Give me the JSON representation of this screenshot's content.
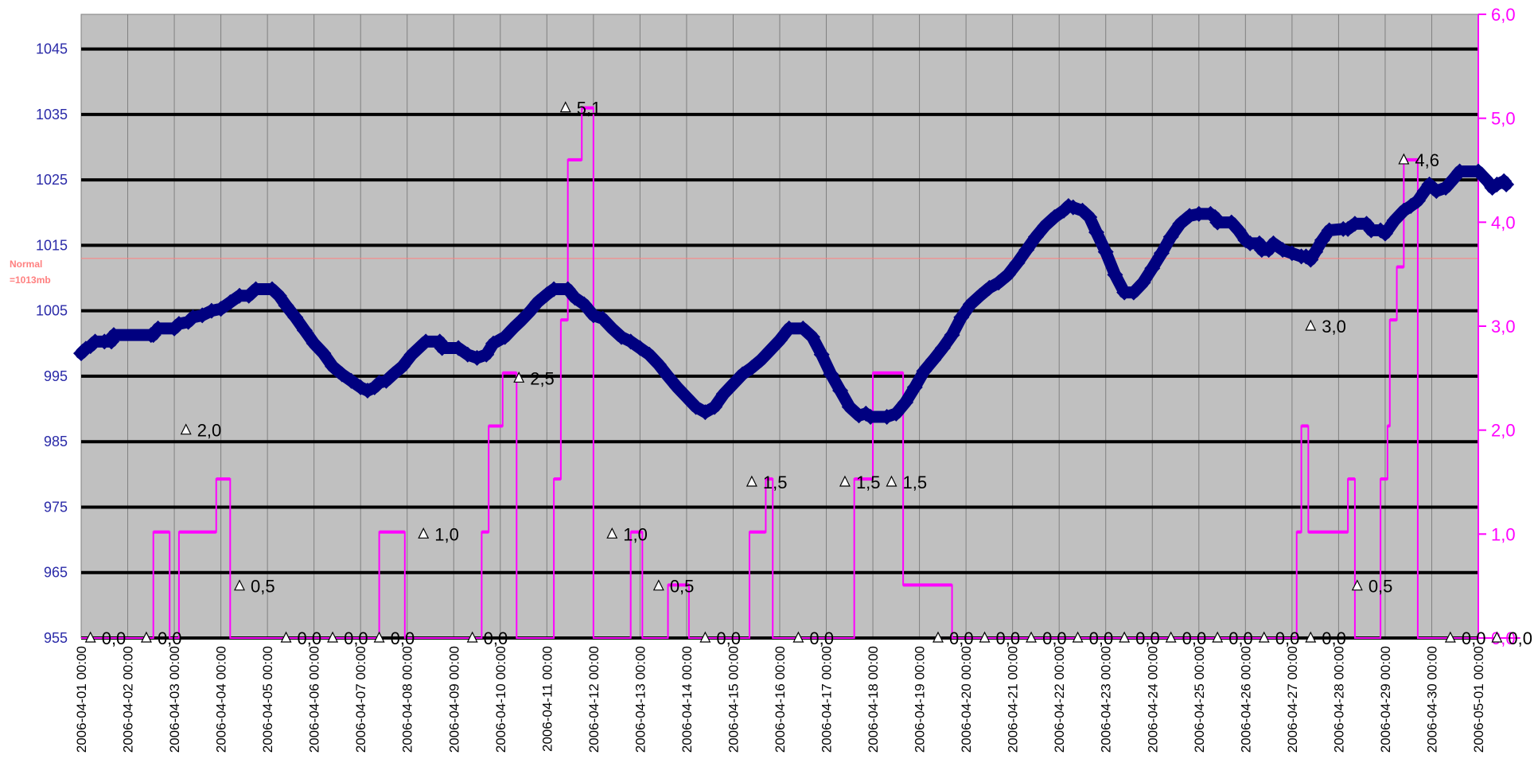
{
  "chart_data": {
    "type": "line",
    "x_labels": [
      "2006-04-01 00:00",
      "2006-04-02 00:00",
      "2006-04-03 00:00",
      "2006-04-04 00:00",
      "2006-04-05 00:00",
      "2006-04-06 00:00",
      "2006-04-07 00:00",
      "2006-04-08 00:00",
      "2006-04-09 00:00",
      "2006-04-10 00:00",
      "2006-04-11 00:00",
      "2006-04-12 00:00",
      "2006-04-13 00:00",
      "2006-04-14 00:00",
      "2006-04-15 00:00",
      "2006-04-16 00:00",
      "2006-04-17 00:00",
      "2006-04-18 00:00",
      "2006-04-19 00:00",
      "2006-04-20 00:00",
      "2006-04-21 00:00",
      "2006-04-22 00:00",
      "2006-04-23 00:00",
      "2006-04-24 00:00",
      "2006-04-25 00:00",
      "2006-04-26 00:00",
      "2006-04-27 00:00",
      "2006-04-28 00:00",
      "2006-04-29 00:00",
      "2006-04-30 00:00",
      "2006-05-01 00:00"
    ],
    "y_left": {
      "ticks": [
        955,
        965,
        975,
        985,
        995,
        1005,
        1015,
        1025,
        1035,
        1045
      ],
      "range": [
        955,
        1050.3
      ]
    },
    "y_right": {
      "ticks": [
        "0,0",
        "1,0",
        "2,0",
        "3,0",
        "4,0",
        "5,0",
        "6,0"
      ],
      "range": [
        0,
        6
      ]
    },
    "grid": "horizontal and vertical",
    "reference_line": {
      "value": 1013,
      "label_line1": "Normal",
      "label_line2": "=1013mb",
      "color": "#ff8080"
    },
    "colors": {
      "plot_background": "#c0c0c0",
      "pressure_line": "#000080",
      "precipitation_line": "#ff00ff",
      "left_axis_text": "#2a2aa8",
      "right_axis_text": "#ff00ff"
    },
    "series": [
      {
        "axis": "left",
        "points": [
          [
            0,
            998.5
          ],
          [
            0.1,
            999.2
          ],
          [
            0.2,
            999.6
          ],
          [
            0.3,
            1000.3
          ],
          [
            0.5,
            1000.3
          ],
          [
            0.65,
            1000.3
          ],
          [
            0.7,
            1001.3
          ],
          [
            1.5,
            1001.3
          ],
          [
            1.55,
            1001.3
          ],
          [
            1.65,
            1002.3
          ],
          [
            2.0,
            1002.3
          ],
          [
            2.1,
            1003.0
          ],
          [
            2.3,
            1003.3
          ],
          [
            2.4,
            1004.0
          ],
          [
            2.6,
            1004.3
          ],
          [
            2.8,
            1005.0
          ],
          [
            3.0,
            1005.3
          ],
          [
            3.2,
            1006.3
          ],
          [
            3.4,
            1007.3
          ],
          [
            3.6,
            1007.3
          ],
          [
            3.75,
            1008.3
          ],
          [
            4.1,
            1008.3
          ],
          [
            4.25,
            1007.3
          ],
          [
            4.4,
            1005.8
          ],
          [
            4.6,
            1004.0
          ],
          [
            4.8,
            1002.0
          ],
          [
            5.0,
            1000.0
          ],
          [
            5.2,
            998.5
          ],
          [
            5.4,
            996.5
          ],
          [
            5.6,
            995.3
          ],
          [
            5.8,
            994.3
          ],
          [
            6.0,
            993.3
          ],
          [
            6.15,
            992.8
          ],
          [
            6.3,
            993.3
          ],
          [
            6.4,
            994.0
          ],
          [
            6.55,
            994.3
          ],
          [
            6.7,
            995.3
          ],
          [
            6.9,
            996.5
          ],
          [
            7.1,
            998.3
          ],
          [
            7.25,
            999.3
          ],
          [
            7.4,
            1000.3
          ],
          [
            7.7,
            1000.3
          ],
          [
            7.75,
            999.3
          ],
          [
            8.1,
            999.3
          ],
          [
            8.3,
            998.3
          ],
          [
            8.5,
            997.8
          ],
          [
            8.7,
            998.3
          ],
          [
            8.85,
            1000.0
          ],
          [
            9.1,
            1001.0
          ],
          [
            9.3,
            1002.5
          ],
          [
            9.45,
            1003.5
          ],
          [
            9.65,
            1005.0
          ],
          [
            9.8,
            1006.3
          ],
          [
            10.0,
            1007.5
          ],
          [
            10.15,
            1008.3
          ],
          [
            10.45,
            1008.3
          ],
          [
            10.6,
            1007.0
          ],
          [
            10.8,
            1006.0
          ],
          [
            11.0,
            1004.3
          ],
          [
            11.2,
            1003.8
          ],
          [
            11.4,
            1002.3
          ],
          [
            11.6,
            1001.0
          ],
          [
            11.8,
            1000.3
          ],
          [
            12.0,
            999.3
          ],
          [
            12.2,
            998.3
          ],
          [
            12.4,
            996.8
          ],
          [
            12.6,
            995.0
          ],
          [
            12.8,
            993.3
          ],
          [
            13.0,
            991.8
          ],
          [
            13.2,
            990.3
          ],
          [
            13.4,
            989.5
          ],
          [
            13.6,
            990.3
          ],
          [
            13.8,
            992.3
          ],
          [
            14.0,
            993.8
          ],
          [
            14.2,
            995.3
          ],
          [
            14.4,
            996.3
          ],
          [
            14.6,
            997.5
          ],
          [
            14.8,
            999.0
          ],
          [
            15.0,
            1000.5
          ],
          [
            15.2,
            1002.3
          ],
          [
            15.5,
            1002.3
          ],
          [
            15.7,
            1001.0
          ],
          [
            15.9,
            998.3
          ],
          [
            16.1,
            995.3
          ],
          [
            16.3,
            992.8
          ],
          [
            16.5,
            990.3
          ],
          [
            16.7,
            989.0
          ],
          [
            16.85,
            989.3
          ],
          [
            16.95,
            988.8
          ],
          [
            17.3,
            988.8
          ],
          [
            17.5,
            989.3
          ],
          [
            17.7,
            991.0
          ],
          [
            17.9,
            993.3
          ],
          [
            18.1,
            995.8
          ],
          [
            18.3,
            997.5
          ],
          [
            18.5,
            999.3
          ],
          [
            18.7,
            1001.3
          ],
          [
            18.9,
            1004.0
          ],
          [
            19.1,
            1006.0
          ],
          [
            19.3,
            1007.3
          ],
          [
            19.5,
            1008.5
          ],
          [
            19.7,
            1009.3
          ],
          [
            19.9,
            1010.5
          ],
          [
            20.1,
            1012.3
          ],
          [
            20.3,
            1014.3
          ],
          [
            20.5,
            1016.3
          ],
          [
            20.7,
            1018.0
          ],
          [
            20.9,
            1019.3
          ],
          [
            21.1,
            1020.3
          ],
          [
            21.2,
            1021.0
          ],
          [
            21.3,
            1020.8
          ],
          [
            21.5,
            1020.3
          ],
          [
            21.65,
            1019.3
          ],
          [
            21.8,
            1017.0
          ],
          [
            22.0,
            1014.0
          ],
          [
            22.2,
            1010.5
          ],
          [
            22.4,
            1007.8
          ],
          [
            22.6,
            1007.8
          ],
          [
            22.8,
            1009.3
          ],
          [
            23.0,
            1011.5
          ],
          [
            23.2,
            1013.8
          ],
          [
            23.4,
            1016.3
          ],
          [
            23.6,
            1018.3
          ],
          [
            23.8,
            1019.5
          ],
          [
            24.0,
            1019.8
          ],
          [
            24.25,
            1019.8
          ],
          [
            24.35,
            1019.3
          ],
          [
            24.4,
            1018.5
          ],
          [
            24.7,
            1018.5
          ],
          [
            24.85,
            1017.3
          ],
          [
            25.0,
            1015.8
          ],
          [
            25.1,
            1015.3
          ],
          [
            25.3,
            1015.3
          ],
          [
            25.35,
            1014.3
          ],
          [
            25.5,
            1014.3
          ],
          [
            25.6,
            1015.3
          ],
          [
            25.8,
            1014.3
          ],
          [
            26.0,
            1013.8
          ],
          [
            26.2,
            1013.3
          ],
          [
            26.3,
            1013.3
          ],
          [
            26.4,
            1012.8
          ],
          [
            26.5,
            1014.0
          ],
          [
            26.65,
            1015.8
          ],
          [
            26.8,
            1017.3
          ],
          [
            27.1,
            1017.5
          ],
          [
            27.2,
            1017.5
          ],
          [
            27.35,
            1018.3
          ],
          [
            27.6,
            1018.3
          ],
          [
            27.7,
            1017.3
          ],
          [
            27.9,
            1017.3
          ],
          [
            28.0,
            1016.8
          ],
          [
            28.2,
            1018.8
          ],
          [
            28.4,
            1020.3
          ],
          [
            28.55,
            1021.0
          ],
          [
            28.7,
            1021.8
          ],
          [
            28.85,
            1023.3
          ],
          [
            28.95,
            1024.3
          ],
          [
            29.1,
            1023.3
          ],
          [
            29.3,
            1023.8
          ],
          [
            29.45,
            1025.0
          ],
          [
            29.6,
            1026.3
          ],
          [
            30.0,
            1026.3
          ],
          [
            30.2,
            1024.8
          ],
          [
            30.3,
            1023.8
          ],
          [
            30.4,
            1024.3
          ],
          [
            30.55,
            1024.8
          ],
          [
            30.6,
            1024.3
          ]
        ]
      },
      {
        "axis": "right",
        "points": [
          [
            0,
            0
          ],
          [
            1.55,
            0
          ],
          [
            1.55,
            1.02
          ],
          [
            1.9,
            1.02
          ],
          [
            1.9,
            0
          ],
          [
            2.1,
            0
          ],
          [
            2.1,
            1.02
          ],
          [
            2.9,
            1.02
          ],
          [
            2.9,
            1.53
          ],
          [
            3.2,
            1.53
          ],
          [
            3.2,
            0
          ],
          [
            6.4,
            0
          ],
          [
            6.4,
            1.02
          ],
          [
            6.95,
            1.02
          ],
          [
            6.95,
            0
          ],
          [
            8.6,
            0
          ],
          [
            8.6,
            1.02
          ],
          [
            8.75,
            1.02
          ],
          [
            8.75,
            2.04
          ],
          [
            9.05,
            2.04
          ],
          [
            9.05,
            2.55
          ],
          [
            9.35,
            2.55
          ],
          [
            9.35,
            0
          ],
          [
            10.15,
            0
          ],
          [
            10.15,
            1.53
          ],
          [
            10.3,
            1.53
          ],
          [
            10.3,
            3.06
          ],
          [
            10.45,
            3.06
          ],
          [
            10.45,
            4.6
          ],
          [
            10.75,
            4.6
          ],
          [
            10.75,
            5.1
          ],
          [
            11.0,
            5.1
          ],
          [
            11.0,
            0
          ],
          [
            11.8,
            0
          ],
          [
            11.8,
            1.02
          ],
          [
            12.05,
            1.02
          ],
          [
            12.05,
            0
          ],
          [
            12.6,
            0
          ],
          [
            12.6,
            0.51
          ],
          [
            13.05,
            0.51
          ],
          [
            13.05,
            0
          ],
          [
            14.35,
            0
          ],
          [
            14.35,
            1.02
          ],
          [
            14.7,
            1.02
          ],
          [
            14.7,
            1.53
          ],
          [
            14.85,
            1.53
          ],
          [
            14.85,
            0
          ],
          [
            16.6,
            0
          ],
          [
            16.6,
            1.53
          ],
          [
            17.0,
            1.53
          ],
          [
            17.0,
            2.55
          ],
          [
            17.65,
            2.55
          ],
          [
            17.65,
            0.51
          ],
          [
            18.7,
            0.51
          ],
          [
            18.7,
            0
          ],
          [
            26.1,
            0
          ],
          [
            26.1,
            1.02
          ],
          [
            26.2,
            1.02
          ],
          [
            26.2,
            2.04
          ],
          [
            26.35,
            2.04
          ],
          [
            26.35,
            1.02
          ],
          [
            27.2,
            1.02
          ],
          [
            27.2,
            1.53
          ],
          [
            27.35,
            1.53
          ],
          [
            27.35,
            0
          ],
          [
            27.9,
            0
          ],
          [
            27.9,
            1.53
          ],
          [
            28.05,
            1.53
          ],
          [
            28.05,
            2.04
          ],
          [
            28.1,
            2.04
          ],
          [
            28.1,
            3.06
          ],
          [
            28.25,
            3.06
          ],
          [
            28.25,
            3.57
          ],
          [
            28.4,
            3.57
          ],
          [
            28.4,
            4.6
          ],
          [
            28.7,
            4.6
          ],
          [
            28.7,
            0
          ],
          [
            30.9,
            0
          ]
        ]
      }
    ],
    "point_labels": [
      {
        "x": 0.2,
        "value": 0,
        "text": "0,0"
      },
      {
        "x": 1.4,
        "value": 0,
        "text": "0,0"
      },
      {
        "x": 2.25,
        "value": 2.0,
        "text": "2,0"
      },
      {
        "x": 3.4,
        "value": 0.5,
        "text": "0,5"
      },
      {
        "x": 4.4,
        "value": 0,
        "text": "0,0"
      },
      {
        "x": 5.4,
        "value": 0,
        "text": "0,0"
      },
      {
        "x": 6.4,
        "value": 0,
        "text": "0,0"
      },
      {
        "x": 7.35,
        "value": 1.0,
        "text": "1,0"
      },
      {
        "x": 8.4,
        "value": 0,
        "text": "0,0"
      },
      {
        "x": 9.4,
        "value": 2.5,
        "text": "2,5"
      },
      {
        "x": 10.4,
        "value": 5.1,
        "text": "5,1"
      },
      {
        "x": 11.4,
        "value": 1.0,
        "text": "1,0"
      },
      {
        "x": 12.4,
        "value": 0.5,
        "text": "0,5"
      },
      {
        "x": 13.4,
        "value": 0,
        "text": "0,0"
      },
      {
        "x": 14.4,
        "value": 1.5,
        "text": "1,5"
      },
      {
        "x": 15.4,
        "value": 0,
        "text": "0,0"
      },
      {
        "x": 16.4,
        "value": 1.5,
        "text": "1,5"
      },
      {
        "x": 17.4,
        "value": 1.5,
        "text": "1,5"
      },
      {
        "x": 18.4,
        "value": 0,
        "text": "0,0"
      },
      {
        "x": 19.4,
        "value": 0,
        "text": "0,0"
      },
      {
        "x": 20.4,
        "value": 0,
        "text": "0,0"
      },
      {
        "x": 21.4,
        "value": 0,
        "text": "0,0"
      },
      {
        "x": 22.4,
        "value": 0,
        "text": "0,0"
      },
      {
        "x": 23.4,
        "value": 0,
        "text": "0,0"
      },
      {
        "x": 24.4,
        "value": 0,
        "text": "0,0"
      },
      {
        "x": 25.4,
        "value": 0,
        "text": "0,0"
      },
      {
        "x": 26.4,
        "value": 0,
        "text": "0,0"
      },
      {
        "x": 26.4,
        "value": 3.0,
        "text": "3,0"
      },
      {
        "x": 27.4,
        "value": 0.5,
        "text": "0,5"
      },
      {
        "x": 28.4,
        "value": 4.6,
        "text": "4,6"
      },
      {
        "x": 29.4,
        "value": 0,
        "text": "0,0"
      },
      {
        "x": 30.4,
        "value": 0,
        "text": "0,0"
      }
    ]
  }
}
